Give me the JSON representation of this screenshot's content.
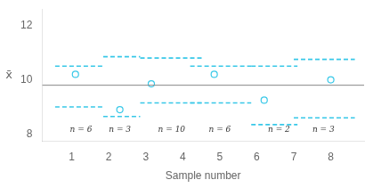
{
  "chart_data": {
    "type": "line",
    "xlabel": "Sample number",
    "ylabel": "x̄",
    "xlim": [
      0.2,
      8.9
    ],
    "ylim": [
      7.75,
      12.6
    ],
    "xticks": [
      1,
      2,
      3,
      4,
      5,
      6,
      7,
      8
    ],
    "yticks": [
      8,
      10,
      12
    ],
    "grid": false,
    "center_line": 9.8,
    "center_color": "#888888",
    "color": "#38c8e8",
    "groups": [
      {
        "x_start": 0.55,
        "x_end": 1.85,
        "ucl": 10.5,
        "lcl": 9.0,
        "circle_x": 1.1,
        "circle_y": 10.2
      },
      {
        "x_start": 1.85,
        "x_end": 2.85,
        "ucl": 10.85,
        "lcl": 8.65,
        "circle_x": 2.3,
        "circle_y": 8.9
      },
      {
        "x_start": 2.85,
        "x_end": 4.55,
        "ucl": 10.8,
        "lcl": 9.15,
        "circle_x": 3.15,
        "circle_y": 9.85
      },
      {
        "x_start": 4.2,
        "x_end": 5.85,
        "ucl": 10.5,
        "lcl": 9.15,
        "circle_x": 4.85,
        "circle_y": 10.2
      },
      {
        "x_start": 5.85,
        "x_end": 7.1,
        "ucl": 10.5,
        "lcl": 8.35,
        "circle_x": 6.2,
        "circle_y": 9.25
      },
      {
        "x_start": 7.0,
        "x_end": 8.65,
        "ucl": 10.75,
        "lcl": 8.6,
        "circle_x": 8.0,
        "circle_y": 10.0
      }
    ],
    "annotations": [
      {
        "text": "n = 6",
        "x": 1.25,
        "y": 8.0
      },
      {
        "text": "n = 3",
        "x": 2.3,
        "y": 8.0
      },
      {
        "text": "n = 10",
        "x": 3.7,
        "y": 8.0
      },
      {
        "text": "n = 6",
        "x": 5.0,
        "y": 8.0
      },
      {
        "text": "n = 2",
        "x": 6.6,
        "y": 8.0
      },
      {
        "text": "n = 3",
        "x": 7.8,
        "y": 8.0
      }
    ]
  }
}
